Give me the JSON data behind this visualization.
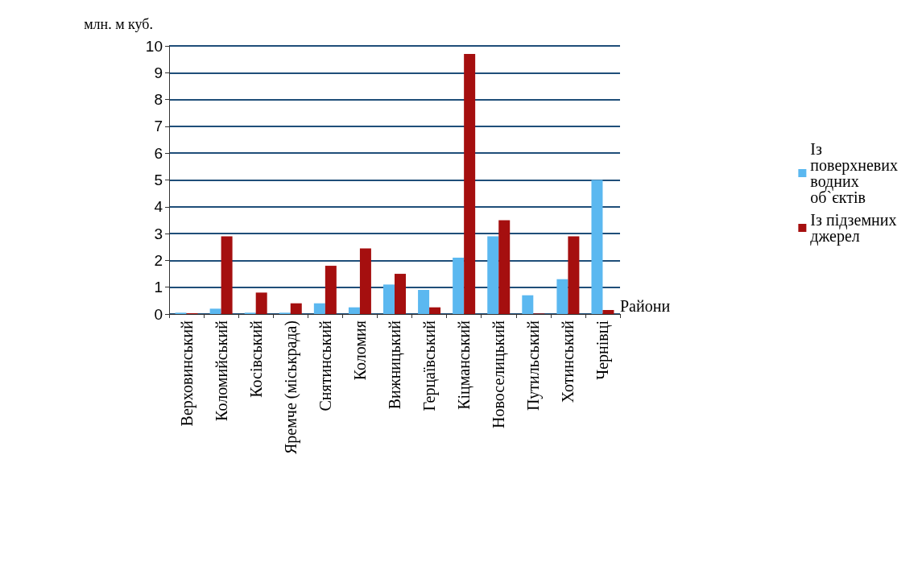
{
  "chart_data": {
    "type": "bar",
    "ylabel": "млн. м куб.",
    "xlabel": "Райони",
    "categories": [
      "Верховинський",
      "Коломийський",
      "Косівський",
      "Яремче (міськрада)",
      "Снятинський",
      "Коломия",
      "Вижницький",
      "Герцаївський",
      "Кіцманський",
      "Новоселицький",
      "Путильський",
      "Хотинський",
      "Чернівці"
    ],
    "series": [
      {
        "name": "Із поверхневих водних об`єктів",
        "color": "#5bb8f0",
        "values": [
          0.05,
          0.2,
          0.05,
          0.05,
          0.4,
          0.25,
          1.1,
          0.9,
          2.1,
          2.9,
          0.7,
          1.3,
          5.0
        ]
      },
      {
        "name": "Із підземних джерел",
        "color": "#a50f0f",
        "values": [
          0.03,
          2.9,
          0.8,
          0.4,
          1.8,
          2.45,
          1.5,
          0.25,
          9.7,
          3.5,
          0.02,
          2.9,
          0.15
        ]
      }
    ],
    "ylim": [
      0,
      10
    ],
    "yticks": [
      0,
      1,
      2,
      3,
      4,
      5,
      6,
      7,
      8,
      9,
      10
    ],
    "grid": "y",
    "legend": "right"
  }
}
